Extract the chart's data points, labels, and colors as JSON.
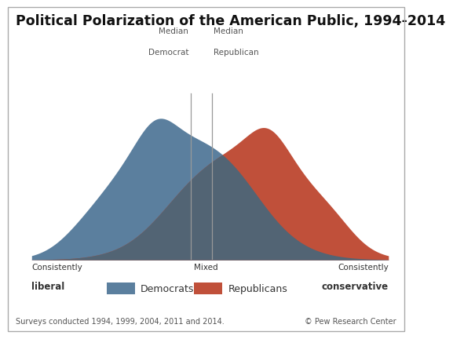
{
  "title": "Political Polarization of the American Public, 1994-2014",
  "title_fontsize": 12.5,
  "background_color": "#ffffff",
  "dem_color": "#5b7f9e",
  "rep_color": "#c0503a",
  "overlap_color": "#526474",
  "x_min": 0,
  "x_max": 10,
  "median_dem": 4.45,
  "median_rep": 5.05,
  "median_line_color": "#999999",
  "label_left_top": "Consistently",
  "label_left_bot": "liberal",
  "label_center": "Mixed",
  "label_right_top": "Consistently",
  "label_right_bot": "conservative",
  "legend_dem": "Democrats",
  "legend_rep": "Republicans",
  "footnote": "Surveys conducted 1994, 1999, 2004, 2011 and 2014.",
  "credit": "© Pew Research Center",
  "median_dem_label1": "Median",
  "median_dem_label2": "Democrat",
  "median_rep_label1": "Median",
  "median_rep_label2": "Republican"
}
